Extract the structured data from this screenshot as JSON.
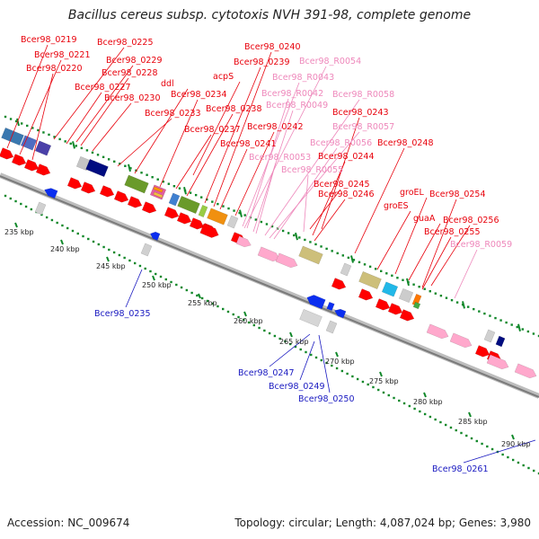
{
  "title": "Bacillus cereus subsp. cytotoxis NVH 391-98, complete genome",
  "footer": {
    "accession": "Accession: NC_009674",
    "summary": "Topology: circular; Length: 4,087,024 bp; Genes: 3,980"
  },
  "colors": {
    "label_forward": "#e8000b",
    "label_rna": "#ee88bb",
    "label_reverse": "#1818c0",
    "gene_forward": "#ff0000",
    "gene_rna": "#ffa8cc",
    "gene_reverse": "#0b2ef0",
    "tick": "#11882a",
    "backbone": "#a8a8a8"
  },
  "scale_ticks": [
    "235 kbp",
    "240 kbp",
    "245 kbp",
    "250 kbp",
    "255 kbp",
    "260 kbp",
    "265 kbp",
    "270 kbp",
    "275 kbp",
    "280 kbp",
    "285 kbp",
    "290 kbp"
  ],
  "labels_forward": [
    "Bcer98_0219",
    "Bcer98_0221",
    "Bcer98_0220",
    "Bcer98_0225",
    "Bcer98_0229",
    "Bcer98_0228",
    "Bcer98_0227",
    "Bcer98_0230",
    "ddl",
    "acpS",
    "Bcer98_0234",
    "Bcer98_0233",
    "Bcer98_0238",
    "Bcer98_0237",
    "Bcer98_0240",
    "Bcer98_0239",
    "Bcer98_0242",
    "Bcer98_0241",
    "Bcer98_0243",
    "Bcer98_0248",
    "Bcer98_0244",
    "Bcer98_0245",
    "Bcer98_0246",
    "groEL",
    "Bcer98_0254",
    "groES",
    "guaA",
    "Bcer98_0256",
    "Bcer98_0255"
  ],
  "labels_rna": [
    "Bcer98_R0054",
    "Bcer98_R0043",
    "Bcer98_R0042",
    "Bcer98_R0058",
    "Bcer98_R0049",
    "Bcer98_R0057",
    "Bcer98_R0056",
    "Bcer98_R0053",
    "Bcer98_R0055",
    "Bcer98_R0059"
  ],
  "labels_reverse": [
    "Bcer98_0235",
    "Bcer98_0247",
    "Bcer98_0249",
    "Bcer98_0250",
    "Bcer98_0261"
  ]
}
